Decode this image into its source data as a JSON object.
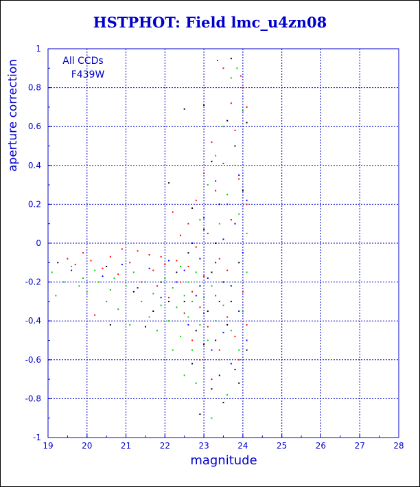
{
  "title": "HSTPHOT: Field lmc_u4zn08",
  "chart_data": {
    "type": "scatter",
    "title": "HSTPHOT: Field lmc_u4zn08",
    "xlabel": "magnitude",
    "ylabel": "aperture correction",
    "xlim": [
      19,
      28
    ],
    "ylim": [
      -1,
      1
    ],
    "xticks": [
      "19",
      "20",
      "21",
      "22",
      "23",
      "24",
      "25",
      "26",
      "27",
      "28"
    ],
    "yticks": [
      "-1",
      "-0.8",
      "-0.6",
      "-0.4",
      "-0.2",
      "0",
      "0.2",
      "0.4",
      "0.6",
      "0.8",
      "1"
    ],
    "grid": true,
    "annotations": [
      "All CCDs",
      "F439W"
    ],
    "colors": {
      "axis": "#0000cc",
      "text": "#0000cc",
      "series": [
        "#000000",
        "#ff0000",
        "#00cc00",
        "#0000ff"
      ]
    },
    "series": [
      {
        "color": "#000000",
        "points": [
          [
            19.25,
            -0.1
          ],
          [
            20.5,
            -0.12
          ],
          [
            20.6,
            -0.42
          ],
          [
            21.2,
            -0.25
          ],
          [
            21.5,
            -0.43
          ],
          [
            21.7,
            -0.35
          ],
          [
            21.9,
            -0.2
          ],
          [
            22.1,
            -0.3
          ],
          [
            22.1,
            0.31
          ],
          [
            22.3,
            -0.15
          ],
          [
            22.5,
            -0.3
          ],
          [
            22.5,
            0.69
          ],
          [
            22.6,
            -0.05
          ],
          [
            22.7,
            -0.62
          ],
          [
            22.7,
            0.18
          ],
          [
            22.8,
            -0.45
          ],
          [
            22.9,
            -0.22
          ],
          [
            22.9,
            -0.88
          ],
          [
            23.0,
            0.07
          ],
          [
            23.0,
            -0.52
          ],
          [
            23.0,
            0.71
          ],
          [
            23.1,
            -0.35
          ],
          [
            23.2,
            -0.15
          ],
          [
            23.2,
            -0.75
          ],
          [
            23.2,
            0.42
          ],
          [
            23.3,
            0.0
          ],
          [
            23.3,
            -0.5
          ],
          [
            23.4,
            -0.68
          ],
          [
            23.4,
            0.2
          ],
          [
            23.5,
            -0.2
          ],
          [
            23.5,
            -0.82
          ],
          [
            23.6,
            0.63
          ],
          [
            23.6,
            -0.42
          ],
          [
            23.7,
            0.95
          ],
          [
            23.7,
            -0.3
          ],
          [
            23.8,
            -0.65
          ],
          [
            23.8,
            0.5
          ],
          [
            23.9,
            -0.1
          ],
          [
            23.9,
            -0.72
          ],
          [
            24.0,
            0.27
          ],
          [
            24.1,
            -0.55
          ],
          [
            24.1,
            0.62
          ]
        ]
      },
      {
        "color": "#ff0000",
        "points": [
          [
            19.5,
            -0.08
          ],
          [
            19.7,
            -0.11
          ],
          [
            19.9,
            -0.05
          ],
          [
            20.1,
            -0.09
          ],
          [
            20.2,
            -0.37
          ],
          [
            20.4,
            -0.13
          ],
          [
            20.6,
            -0.07
          ],
          [
            20.8,
            -0.16
          ],
          [
            20.9,
            -0.03
          ],
          [
            21.1,
            -0.1
          ],
          [
            21.3,
            -0.04
          ],
          [
            21.4,
            -0.2
          ],
          [
            21.6,
            -0.06
          ],
          [
            21.7,
            -0.14
          ],
          [
            21.8,
            -0.22
          ],
          [
            21.9,
            -0.07
          ],
          [
            22.0,
            -0.11
          ],
          [
            22.1,
            -0.28
          ],
          [
            22.2,
            0.16
          ],
          [
            22.3,
            -0.09
          ],
          [
            22.4,
            -0.2
          ],
          [
            22.4,
            0.04
          ],
          [
            22.5,
            -0.36
          ],
          [
            22.6,
            -0.12
          ],
          [
            22.6,
            0.1
          ],
          [
            22.7,
            -0.5
          ],
          [
            22.7,
            -0.25
          ],
          [
            22.8,
            0.22
          ],
          [
            22.8,
            -0.02
          ],
          [
            22.9,
            -0.33
          ],
          [
            22.9,
            -0.6
          ],
          [
            23.0,
            0.36
          ],
          [
            23.0,
            -0.17
          ],
          [
            23.1,
            -0.43
          ],
          [
            23.1,
            0.05
          ],
          [
            23.2,
            -0.7
          ],
          [
            23.2,
            0.52
          ],
          [
            23.3,
            -0.27
          ],
          [
            23.3,
            0.27
          ],
          [
            23.4,
            -0.08
          ],
          [
            23.4,
            -0.55
          ],
          [
            23.5,
            0.9
          ],
          [
            23.5,
            0.41
          ],
          [
            23.6,
            -0.14
          ],
          [
            23.6,
            -0.38
          ],
          [
            23.7,
            0.72
          ],
          [
            23.7,
            0.12
          ],
          [
            23.8,
            -0.48
          ],
          [
            23.8,
            0.58
          ],
          [
            23.9,
            0.33
          ],
          [
            23.9,
            -0.6
          ],
          [
            24.0,
            0.8
          ],
          [
            24.0,
            -0.25
          ],
          [
            24.1,
            0.7
          ],
          [
            24.1,
            0.2
          ],
          [
            24.1,
            -0.42
          ],
          [
            23.35,
            0.94
          ],
          [
            23.95,
            0.86
          ]
        ]
      },
      {
        "color": "#00cc00",
        "points": [
          [
            19.1,
            -0.15
          ],
          [
            19.2,
            -0.27
          ],
          [
            19.4,
            -0.2
          ],
          [
            19.6,
            -0.12
          ],
          [
            19.8,
            -0.22
          ],
          [
            19.9,
            -0.18
          ],
          [
            20.0,
            -0.25
          ],
          [
            20.2,
            -0.14
          ],
          [
            20.3,
            -0.2
          ],
          [
            20.5,
            -0.3
          ],
          [
            20.6,
            -0.24
          ],
          [
            20.7,
            -0.18
          ],
          [
            20.8,
            -0.34
          ],
          [
            21.0,
            -0.22
          ],
          [
            21.1,
            -0.42
          ],
          [
            21.2,
            -0.15
          ],
          [
            21.4,
            -0.3
          ],
          [
            21.5,
            -0.2
          ],
          [
            21.6,
            -0.38
          ],
          [
            21.7,
            -0.26
          ],
          [
            21.8,
            -0.45
          ],
          [
            21.9,
            -0.32
          ],
          [
            22.0,
            -0.18
          ],
          [
            22.1,
            -0.4
          ],
          [
            22.2,
            -0.23
          ],
          [
            22.2,
            -0.55
          ],
          [
            22.3,
            -0.33
          ],
          [
            22.4,
            -0.12
          ],
          [
            22.4,
            -0.48
          ],
          [
            22.5,
            -0.27
          ],
          [
            22.5,
            -0.68
          ],
          [
            22.6,
            -0.38
          ],
          [
            22.6,
            -0.2
          ],
          [
            22.7,
            -0.55
          ],
          [
            22.7,
            -0.3
          ],
          [
            22.8,
            -0.72
          ],
          [
            22.8,
            -0.15
          ],
          [
            22.9,
            -0.42
          ],
          [
            22.9,
            0.12
          ],
          [
            23.0,
            -0.28
          ],
          [
            23.0,
            -0.64
          ],
          [
            23.1,
            -0.5
          ],
          [
            23.1,
            0.3
          ],
          [
            23.2,
            -0.22
          ],
          [
            23.2,
            -0.9
          ],
          [
            23.3,
            -0.4
          ],
          [
            23.3,
            0.45
          ],
          [
            23.4,
            -0.6
          ],
          [
            23.4,
            0.1
          ],
          [
            23.5,
            -0.32
          ],
          [
            23.5,
            0.6
          ],
          [
            23.6,
            -0.78
          ],
          [
            23.6,
            0.25
          ],
          [
            23.7,
            -0.45
          ],
          [
            23.7,
            0.85
          ],
          [
            23.8,
            -0.2
          ],
          [
            23.8,
            0.4
          ],
          [
            23.9,
            -0.55
          ],
          [
            23.9,
            0.15
          ],
          [
            24.0,
            -0.35
          ],
          [
            24.0,
            0.68
          ],
          [
            24.1,
            -0.15
          ],
          [
            24.1,
            0.05
          ],
          [
            23.85,
            0.9
          ]
        ]
      },
      {
        "color": "#0000ff",
        "points": [
          [
            19.6,
            -0.14
          ],
          [
            20.4,
            -0.17
          ],
          [
            20.9,
            -0.11
          ],
          [
            21.3,
            -0.23
          ],
          [
            21.6,
            -0.13
          ],
          [
            21.9,
            -0.28
          ],
          [
            22.1,
            -0.09
          ],
          [
            22.3,
            -0.2
          ],
          [
            22.5,
            -0.14
          ],
          [
            22.6,
            -0.42
          ],
          [
            22.7,
            0.0
          ],
          [
            22.8,
            -0.27
          ],
          [
            22.9,
            -0.08
          ],
          [
            23.0,
            -0.36
          ],
          [
            23.0,
            0.13
          ],
          [
            23.1,
            -0.18
          ],
          [
            23.2,
            -0.55
          ],
          [
            23.3,
            -0.1
          ],
          [
            23.3,
            0.32
          ],
          [
            23.4,
            -0.3
          ],
          [
            23.5,
            0.02
          ],
          [
            23.5,
            -0.46
          ],
          [
            23.6,
            0.2
          ],
          [
            23.7,
            -0.22
          ],
          [
            23.7,
            -0.62
          ],
          [
            23.8,
            0.1
          ],
          [
            23.9,
            -0.35
          ],
          [
            23.9,
            0.35
          ],
          [
            24.0,
            -0.05
          ],
          [
            24.1,
            -0.5
          ],
          [
            24.1,
            0.22
          ]
        ]
      }
    ]
  }
}
